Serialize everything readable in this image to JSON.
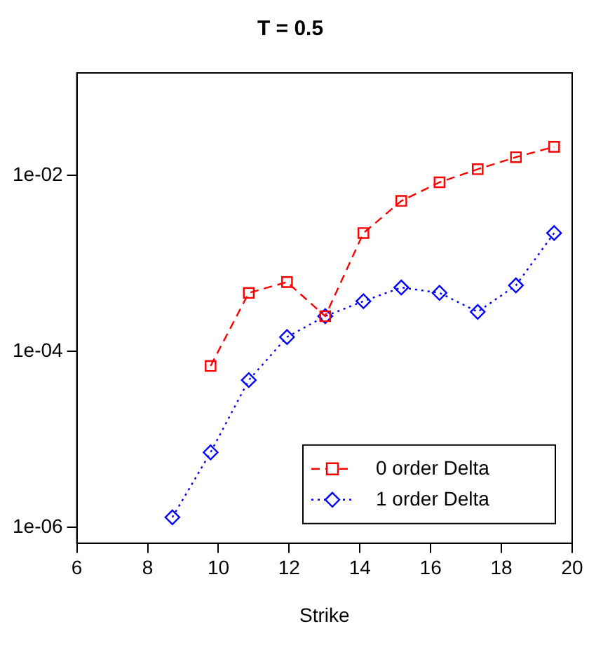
{
  "chart_data": {
    "type": "line",
    "title": "T = 0.5",
    "xlabel": "Strike",
    "x": [
      8.7,
      9.78,
      10.86,
      11.94,
      13.02,
      14.1,
      15.17,
      16.25,
      17.33,
      18.41,
      19.49
    ],
    "series": [
      {
        "name": "0 order Delta",
        "color": "#ff0000",
        "marker": "square",
        "line_style": "dashed",
        "values": [
          null,
          6.8e-05,
          0.00046,
          0.00061,
          0.00025,
          0.0022,
          0.0051,
          0.0083,
          0.0117,
          0.016,
          0.021
        ]
      },
      {
        "name": "1 order Delta",
        "color": "#0000ff",
        "marker": "diamond",
        "line_style": "dotted",
        "values": [
          1.3e-06,
          7.1e-06,
          4.7e-05,
          0.000145,
          0.00025,
          0.00037,
          0.00053,
          0.00046,
          0.00028,
          0.00056,
          0.0022
        ]
      }
    ],
    "xlim": [
      6,
      20
    ],
    "xticks": [
      6,
      8,
      10,
      12,
      14,
      16,
      18,
      20
    ],
    "ylim": [
      6.6e-07,
      0.145
    ],
    "yticks": [
      {
        "value": 1e-06,
        "label": "1e-06"
      },
      {
        "value": 0.0001,
        "label": "1e-04"
      },
      {
        "value": 0.01,
        "label": "1e-02"
      }
    ],
    "log": "y",
    "grid": false,
    "legend": "bottom right"
  }
}
